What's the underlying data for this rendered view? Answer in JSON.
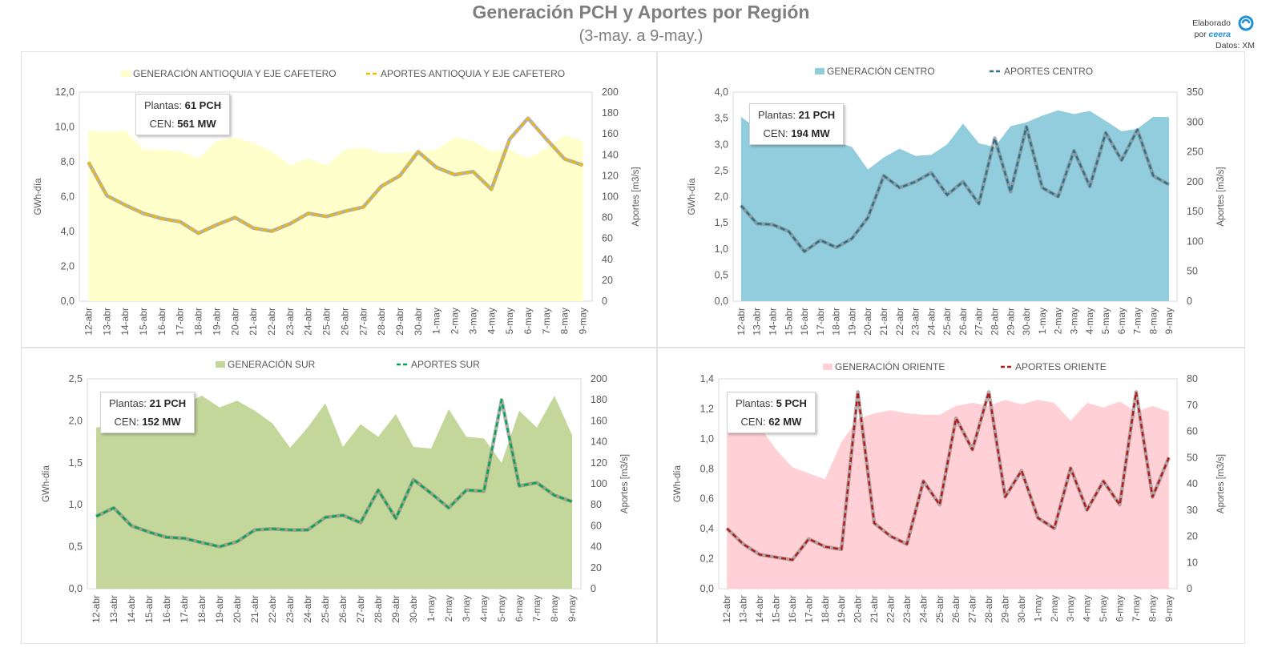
{
  "title": "Generación PCH y Aportes por Región",
  "subtitle": "(3-may. a 9-may.)",
  "credit": {
    "line1": "Elaborado",
    "line2": "por",
    "brand": "ceera",
    "line3": "Datos: XM"
  },
  "categories": [
    "12-abr",
    "13-abr",
    "14-abr",
    "15-abr",
    "16-abr",
    "17-abr",
    "18-abr",
    "19-abr",
    "20-abr",
    "21-abr",
    "22-abr",
    "23-abr",
    "24-abr",
    "25-abr",
    "26-abr",
    "27-abr",
    "28-abr",
    "29-abr",
    "30-abr",
    "1-may",
    "2-may",
    "3-may",
    "4-may",
    "5-may",
    "6-may",
    "7-may",
    "8-may",
    "9-may"
  ],
  "chart_data": [
    {
      "type": "area",
      "region": "antioquia",
      "legend_gen": "GENERACIÓN ANTIOQUIA Y EJE CAFETERO",
      "legend_ap": "APORTES ANTIOQUIA Y EJE CAFETERO",
      "ylabel": "GWh-día",
      "y2label": "Aportes [m3/s]",
      "ylim": [
        0,
        12
      ],
      "y_ticks": [
        "0,0",
        "2,0",
        "4,0",
        "6,0",
        "8,0",
        "10,0",
        "12,0"
      ],
      "y2lim": [
        0,
        200
      ],
      "y2_ticks": [
        "0",
        "20",
        "40",
        "60",
        "80",
        "100",
        "120",
        "140",
        "160",
        "180",
        "200"
      ],
      "box": {
        "plantas_label": "Plantas:",
        "plantas": "61 PCH",
        "cen_label": "CEN:",
        "cen": "561 MW"
      },
      "gen_color": "#ffffcc",
      "ap_color": "#f5b800",
      "ap_edge": "#7f7f7f",
      "generation": [
        9.8,
        9.7,
        9.8,
        8.7,
        8.7,
        8.6,
        8.2,
        9.2,
        9.4,
        9.1,
        8.6,
        7.8,
        8.2,
        7.8,
        8.7,
        8.8,
        8.5,
        8.5,
        8.6,
        8.7,
        9.4,
        9.2,
        8.6,
        8.7,
        8.2,
        8.8,
        9.5,
        9.2
      ],
      "aportes": [
        133,
        101,
        92,
        84,
        79,
        76,
        65,
        73,
        80,
        70,
        67,
        74,
        84,
        81,
        86,
        90,
        110,
        120,
        143,
        128,
        121,
        124,
        107,
        155,
        175,
        155,
        136,
        130
      ]
    },
    {
      "type": "area",
      "region": "centro",
      "legend_gen": "GENERACIÓN CENTRO",
      "legend_ap": "APORTES CENTRO",
      "ylabel": "GWh-día",
      "y2label": "Aportes [m3/s]",
      "ylim": [
        0,
        4
      ],
      "y_ticks": [
        "0,0",
        "0,5",
        "1,0",
        "1,5",
        "2,0",
        "2,5",
        "3,0",
        "3,5",
        "4,0"
      ],
      "y2lim": [
        0,
        350
      ],
      "y2_ticks": [
        "0",
        "50",
        "100",
        "150",
        "200",
        "250",
        "300",
        "350"
      ],
      "box": {
        "plantas_label": "Plantas:",
        "plantas": "21 PCH",
        "cen_label": "CEN:",
        "cen": "194 MW"
      },
      "gen_color": "#92cddd",
      "ap_color": "#31708a",
      "ap_edge": "#7f7f7f",
      "generation": [
        3.53,
        3.3,
        3.2,
        3.15,
        3.1,
        3.1,
        3.05,
        2.95,
        2.52,
        2.75,
        2.92,
        2.78,
        2.8,
        3.0,
        3.4,
        3.02,
        2.95,
        3.35,
        3.42,
        3.55,
        3.65,
        3.58,
        3.64,
        3.45,
        3.25,
        3.3,
        3.53,
        3.52
      ],
      "aportes": [
        160,
        130,
        128,
        117,
        83,
        102,
        90,
        105,
        140,
        210,
        190,
        200,
        215,
        178,
        200,
        163,
        273,
        183,
        292,
        190,
        175,
        252,
        192,
        282,
        236,
        287,
        210,
        195
      ]
    },
    {
      "type": "area",
      "region": "sur",
      "legend_gen": "GENERACIÓN SUR",
      "legend_ap": "APORTES SUR",
      "ylabel": "GWh-día",
      "y2label": "Aportes [m3/s]",
      "ylim": [
        0,
        2.5
      ],
      "y_ticks": [
        "0,0",
        "0,5",
        "1,0",
        "1,5",
        "2,0",
        "2,5"
      ],
      "y2lim": [
        0,
        200
      ],
      "y2_ticks": [
        "0",
        "20",
        "40",
        "60",
        "80",
        "100",
        "120",
        "140",
        "160",
        "180",
        "200"
      ],
      "box": {
        "plantas_label": "Plantas:",
        "plantas": "21 PCH",
        "cen_label": "CEN:",
        "cen": "152 MW"
      },
      "gen_color": "#c4d79b",
      "ap_color": "#00a651",
      "ap_edge": "#7f7f7f",
      "generation": [
        1.92,
        1.95,
        2.0,
        2.1,
        2.15,
        2.2,
        2.3,
        2.16,
        2.24,
        2.12,
        1.97,
        1.68,
        1.92,
        2.21,
        1.69,
        1.96,
        1.81,
        2.08,
        1.69,
        1.67,
        2.14,
        1.81,
        1.79,
        1.5,
        2.12,
        1.92,
        2.3,
        1.83
      ],
      "aportes": [
        69,
        77,
        60,
        54,
        49,
        48,
        44,
        40,
        45,
        56,
        57,
        56,
        56,
        68,
        70,
        63,
        94,
        67,
        104,
        91,
        77,
        94,
        93,
        180,
        98,
        101,
        89,
        83
      ]
    },
    {
      "type": "area",
      "region": "oriente",
      "legend_gen": "GENERACIÓN ORIENTE",
      "legend_ap": "APORTES ORIENTE",
      "ylabel": "GWh-día",
      "y2label": "Aportes [m3/s]",
      "ylim": [
        0,
        1.4
      ],
      "y_ticks": [
        "0,0",
        "0,2",
        "0,4",
        "0,6",
        "0,8",
        "1,0",
        "1,2",
        "1,4"
      ],
      "y2lim": [
        0,
        80
      ],
      "y2_ticks": [
        "0",
        "10",
        "20",
        "30",
        "40",
        "50",
        "60",
        "70",
        "80"
      ],
      "box": {
        "plantas_label": "Plantas:",
        "plantas": "5 PCH",
        "cen_label": "CEN:",
        "cen": "62 MW"
      },
      "gen_color": "#ffd1d6",
      "ap_color": "#b31b1b",
      "ap_edge": "#7f7f7f",
      "generation": [
        1.19,
        1.18,
        1.08,
        0.93,
        0.81,
        0.77,
        0.73,
        0.98,
        1.13,
        1.17,
        1.19,
        1.17,
        1.16,
        1.16,
        1.22,
        1.24,
        1.22,
        1.26,
        1.23,
        1.26,
        1.24,
        1.12,
        1.24,
        1.21,
        1.25,
        1.18,
        1.22,
        1.18
      ],
      "aportes": [
        23,
        17,
        13,
        12,
        11,
        19,
        16,
        15,
        75,
        25,
        20,
        17,
        41,
        32,
        65,
        53,
        75,
        35,
        45,
        27,
        23,
        46,
        30,
        41,
        32,
        75,
        35,
        50
      ]
    }
  ]
}
